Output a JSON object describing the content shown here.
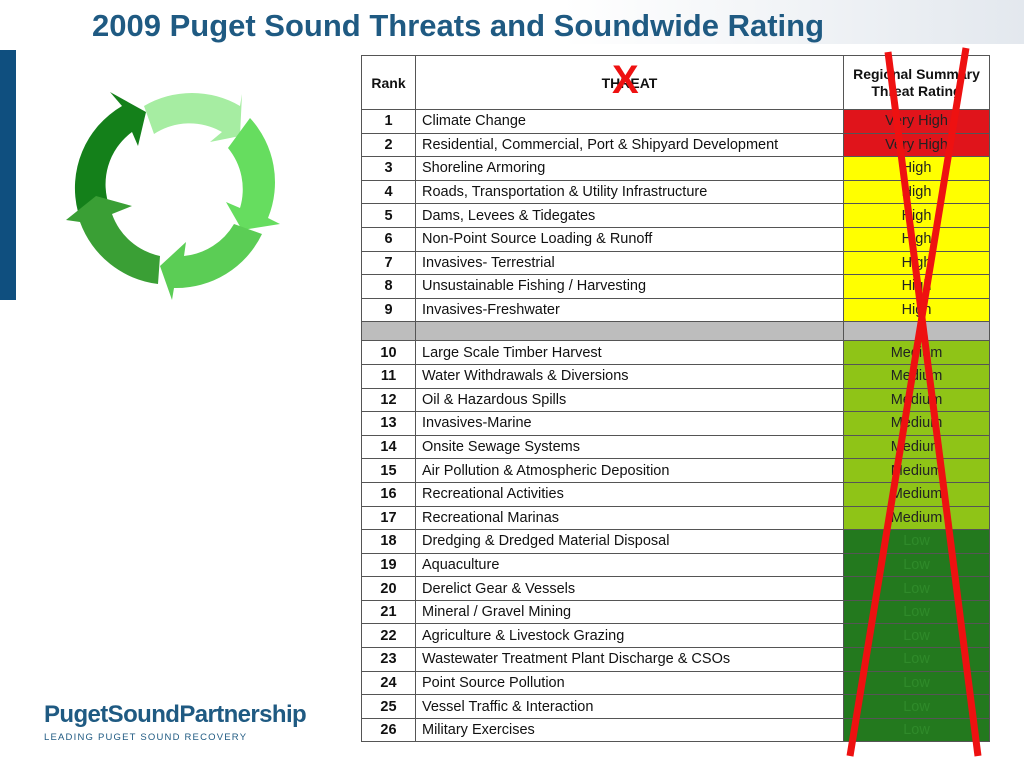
{
  "slide": {
    "title": "2009 Puget Sound Threats and Soundwide Rating",
    "overlay_mark": "X",
    "brand": "PugetSoundPartnership",
    "tagline": "LEADING PUGET SOUND RECOVERY"
  },
  "table": {
    "headers": {
      "rank": "Rank",
      "threat": "THREAT",
      "rating": "Regional Summary Threat Rating"
    },
    "rows_top": [
      {
        "rank": "1",
        "threat": "Climate Change",
        "rating": "Very High",
        "level": "vh"
      },
      {
        "rank": "2",
        "threat": "Residential, Commercial, Port & Shipyard Development",
        "rating": "Very High",
        "level": "vh"
      },
      {
        "rank": "3",
        "threat": "Shoreline Armoring",
        "rating": "High",
        "level": "h"
      },
      {
        "rank": "4",
        "threat": "Roads, Transportation & Utility Infrastructure",
        "rating": "High",
        "level": "h"
      },
      {
        "rank": "5",
        "threat": "Dams, Levees & Tidegates",
        "rating": "High",
        "level": "h"
      },
      {
        "rank": "6",
        "threat": "Non-Point Source Loading & Runoff",
        "rating": "High",
        "level": "h"
      },
      {
        "rank": "7",
        "threat": "Invasives- Terrestrial",
        "rating": "High",
        "level": "h"
      },
      {
        "rank": "8",
        "threat": "Unsustainable Fishing / Harvesting",
        "rating": "High",
        "level": "h"
      },
      {
        "rank": "9",
        "threat": "Invasives-Freshwater",
        "rating": "High",
        "level": "h"
      }
    ],
    "rows_bottom": [
      {
        "rank": "10",
        "threat": "Large Scale Timber Harvest",
        "rating": "Medium",
        "level": "m"
      },
      {
        "rank": "11",
        "threat": "Water Withdrawals & Diversions",
        "rating": "Medium",
        "level": "m"
      },
      {
        "rank": "12",
        "threat": "Oil & Hazardous Spills",
        "rating": "Medium",
        "level": "m"
      },
      {
        "rank": "13",
        "threat": "Invasives-Marine",
        "rating": "Medium",
        "level": "m"
      },
      {
        "rank": "14",
        "threat": "Onsite Sewage Systems",
        "rating": "Medium",
        "level": "m"
      },
      {
        "rank": "15",
        "threat": "Air Pollution & Atmospheric Deposition",
        "rating": "Medium",
        "level": "m"
      },
      {
        "rank": "16",
        "threat": "Recreational Activities",
        "rating": "Medium",
        "level": "m"
      },
      {
        "rank": "17",
        "threat": "Recreational Marinas",
        "rating": "Medium",
        "level": "m"
      },
      {
        "rank": "18",
        "threat": "Dredging & Dredged Material Disposal",
        "rating": "Low",
        "level": "l"
      },
      {
        "rank": "19",
        "threat": "Aquaculture",
        "rating": "Low",
        "level": "l"
      },
      {
        "rank": "20",
        "threat": "Derelict Gear & Vessels",
        "rating": "Low",
        "level": "l"
      },
      {
        "rank": "21",
        "threat": "Mineral / Gravel Mining",
        "rating": "Low",
        "level": "l"
      },
      {
        "rank": "22",
        "threat": "Agriculture & Livestock Grazing",
        "rating": "Low",
        "level": "l"
      },
      {
        "rank": "23",
        "threat": "Wastewater Treatment Plant Discharge & CSOs",
        "rating": "Low",
        "level": "l"
      },
      {
        "rank": "24",
        "threat": "Point Source Pollution",
        "rating": "Low",
        "level": "l"
      },
      {
        "rank": "25",
        "threat": "Vessel Traffic & Interaction",
        "rating": "Low",
        "level": "l"
      },
      {
        "rank": "26",
        "threat": "Military Exercises",
        "rating": "Low",
        "level": "l"
      }
    ]
  },
  "colors": {
    "title": "#1f5a82",
    "very_high": "#e0141b",
    "high": "#ffff00",
    "medium": "#8fc417",
    "low": "#23791e",
    "cross": "#ee1111",
    "cycle": [
      "#14801a",
      "#9de89a",
      "#5ed85a",
      "#3aa83a"
    ]
  },
  "icons": {
    "cycle": "cycle-arrows-icon"
  }
}
